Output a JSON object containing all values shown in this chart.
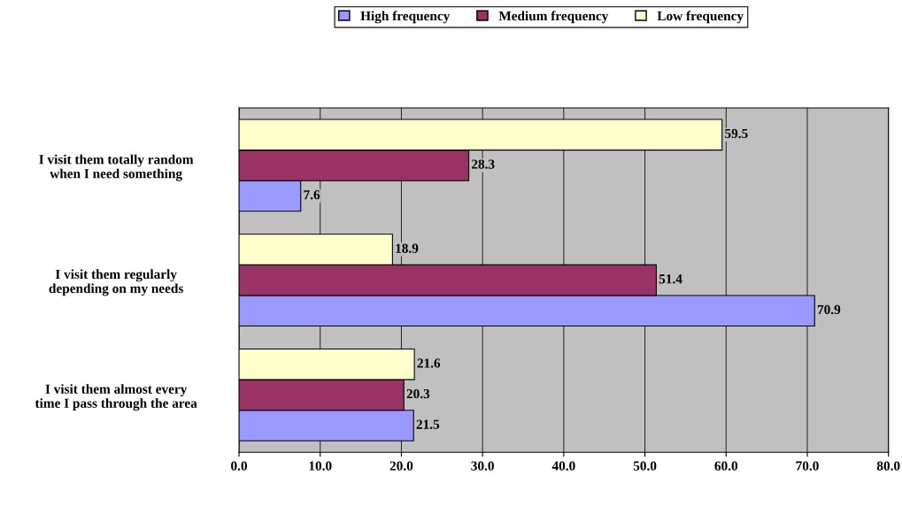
{
  "chart_data": {
    "type": "bar",
    "orientation": "horizontal",
    "categories": [
      "I visit them totally random\nwhen I need something",
      "I visit them regularly\ndepending on my needs",
      "I visit them almost every\ntime I pass through the area"
    ],
    "series": [
      {
        "name": "High frequency",
        "color": "#9999ff",
        "values": [
          7.6,
          70.9,
          21.5
        ]
      },
      {
        "name": "Medium frequency",
        "color": "#993366",
        "values": [
          28.3,
          51.4,
          20.3
        ]
      },
      {
        "name": "Low frequency",
        "color": "#ffffcc",
        "values": [
          59.5,
          18.9,
          21.6
        ]
      }
    ],
    "xlim": [
      0,
      80
    ],
    "xticks": [
      {
        "value": 0,
        "label": "0.0"
      },
      {
        "value": 10,
        "label": "10.0"
      },
      {
        "value": 20,
        "label": "20.0"
      },
      {
        "value": 30,
        "label": "30.0"
      },
      {
        "value": 40,
        "label": "40.0"
      },
      {
        "value": 50,
        "label": "50.0"
      },
      {
        "value": 60,
        "label": "60.0"
      },
      {
        "value": 70,
        "label": "70.0"
      },
      {
        "value": 80,
        "label": "80.0"
      }
    ],
    "grid": "x",
    "legend": "top",
    "data_labels": true
  }
}
